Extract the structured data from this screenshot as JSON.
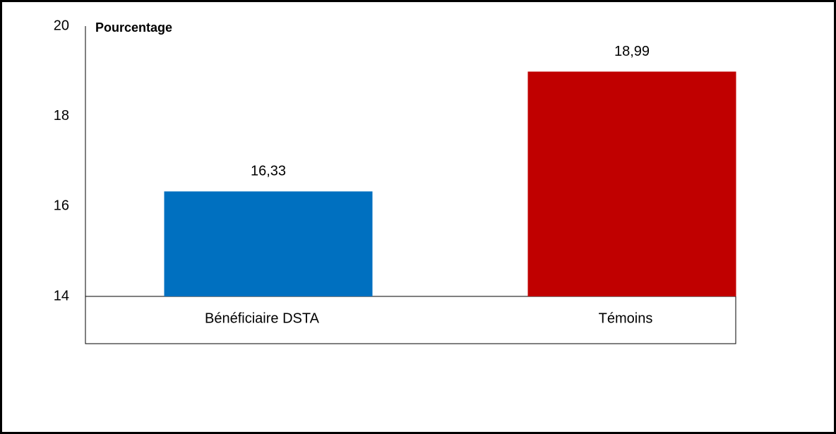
{
  "chart_data": {
    "type": "bar",
    "y_label": "Pourcentage",
    "categories": [
      "Bénéficiaire DSTA",
      "Témoins"
    ],
    "values": [
      16.33,
      18.99
    ],
    "value_labels": [
      "16,33",
      "18,99"
    ],
    "colors": [
      "#0070c0",
      "#c00000"
    ],
    "ylim": [
      14,
      20
    ],
    "yticks": [
      14,
      16,
      18,
      20
    ],
    "grid": false
  }
}
